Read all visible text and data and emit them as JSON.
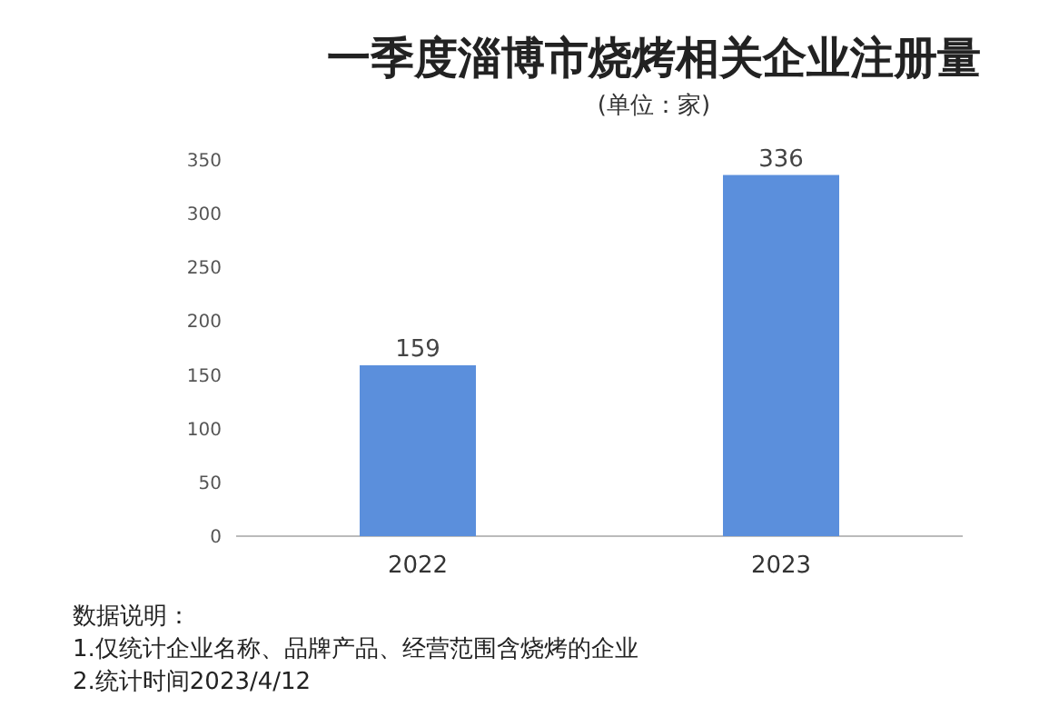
{
  "chart_data": {
    "type": "bar",
    "title": "一季度淄博市烧烤相关企业注册量",
    "subtitle": "(单位：家)",
    "categories": [
      "2022",
      "2023"
    ],
    "values": [
      159,
      336
    ],
    "color": "#5b8fdc",
    "ylim": [
      0,
      350
    ],
    "yticks": [
      0,
      50,
      100,
      150,
      200,
      250,
      300,
      350
    ],
    "data_labels": true,
    "annotations": [
      "数据说明：",
      "1.仅统计企业名称、品牌产品、经营范围含烧烤的企业",
      "2.统计时间2023/4/12"
    ]
  }
}
